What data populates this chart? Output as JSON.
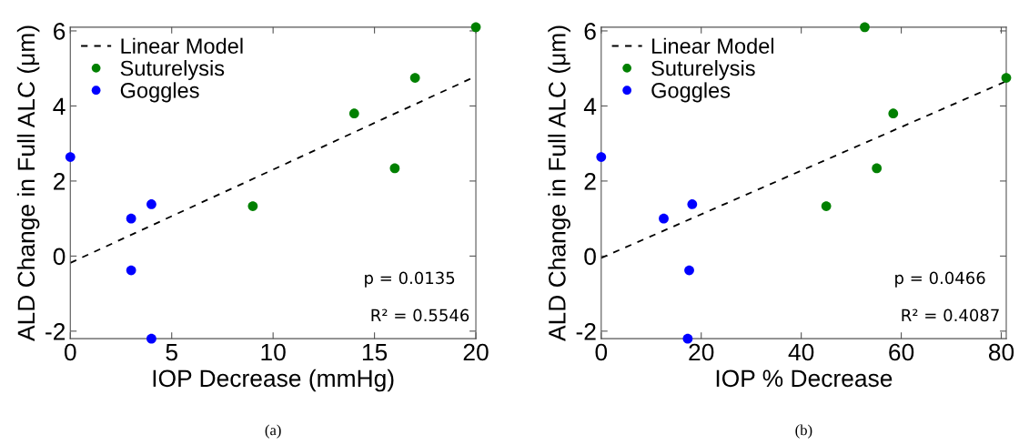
{
  "chart_data": [
    {
      "type": "scatter",
      "xlabel": "IOP Decrease (mmHg)",
      "ylabel": "ALD Change in Full ALC (μm)",
      "xlim": [
        0,
        20
      ],
      "ylim": [
        -2.2,
        6.1
      ],
      "xticks": [
        0,
        5,
        10,
        15,
        20
      ],
      "yticks": [
        -2,
        0,
        2,
        4,
        6
      ],
      "grid": false,
      "legend": "top left",
      "series": [
        {
          "name": "Linear Model",
          "type": "line",
          "color": "#000000",
          "line_style": "dashed",
          "marker": "none",
          "x": [
            0,
            20
          ],
          "values": [
            -0.18,
            4.79
          ]
        },
        {
          "name": "Suturelysis",
          "color": "#008000",
          "marker": "circle",
          "x": [
            9,
            14,
            16,
            17,
            20
          ],
          "values": [
            1.33,
            3.8,
            2.34,
            4.75,
            6.1
          ]
        },
        {
          "name": "Goggles",
          "color": "#0000ff",
          "marker": "circle",
          "x": [
            0,
            3,
            4,
            3,
            4
          ],
          "values": [
            2.64,
            1.0,
            1.38,
            -0.38,
            -2.2
          ]
        }
      ],
      "annotations": [
        "p = 0.0135",
        "R² = 0.5546",
        "(a)"
      ]
    },
    {
      "type": "scatter",
      "xlabel": "IOP % Decrease",
      "ylabel": "ALD Change in Full ALC (μm)",
      "xlim": [
        0,
        81
      ],
      "ylim": [
        -2.2,
        6.1
      ],
      "xticks": [
        0,
        20,
        40,
        60,
        80
      ],
      "yticks": [
        -2,
        0,
        2,
        4,
        6
      ],
      "grid": false,
      "legend": "top left",
      "series": [
        {
          "name": "Linear Model",
          "type": "line",
          "color": "#000000",
          "line_style": "dashed",
          "marker": "none",
          "x": [
            0,
            81
          ],
          "values": [
            -0.05,
            4.66
          ]
        },
        {
          "name": "Suturelysis",
          "color": "#008000",
          "marker": "circle",
          "x": [
            45,
            52.7,
            55.1,
            58.4,
            81
          ],
          "values": [
            1.33,
            6.1,
            2.34,
            3.8,
            4.75
          ]
        },
        {
          "name": "Goggles",
          "color": "#0000ff",
          "marker": "circle",
          "x": [
            0,
            12.5,
            18.2,
            17.6,
            17.3
          ],
          "values": [
            2.64,
            1.0,
            1.38,
            -0.38,
            -2.2
          ]
        }
      ],
      "annotations": [
        "p = 0.0466",
        "R² = 0.4087",
        "(b)"
      ]
    }
  ]
}
